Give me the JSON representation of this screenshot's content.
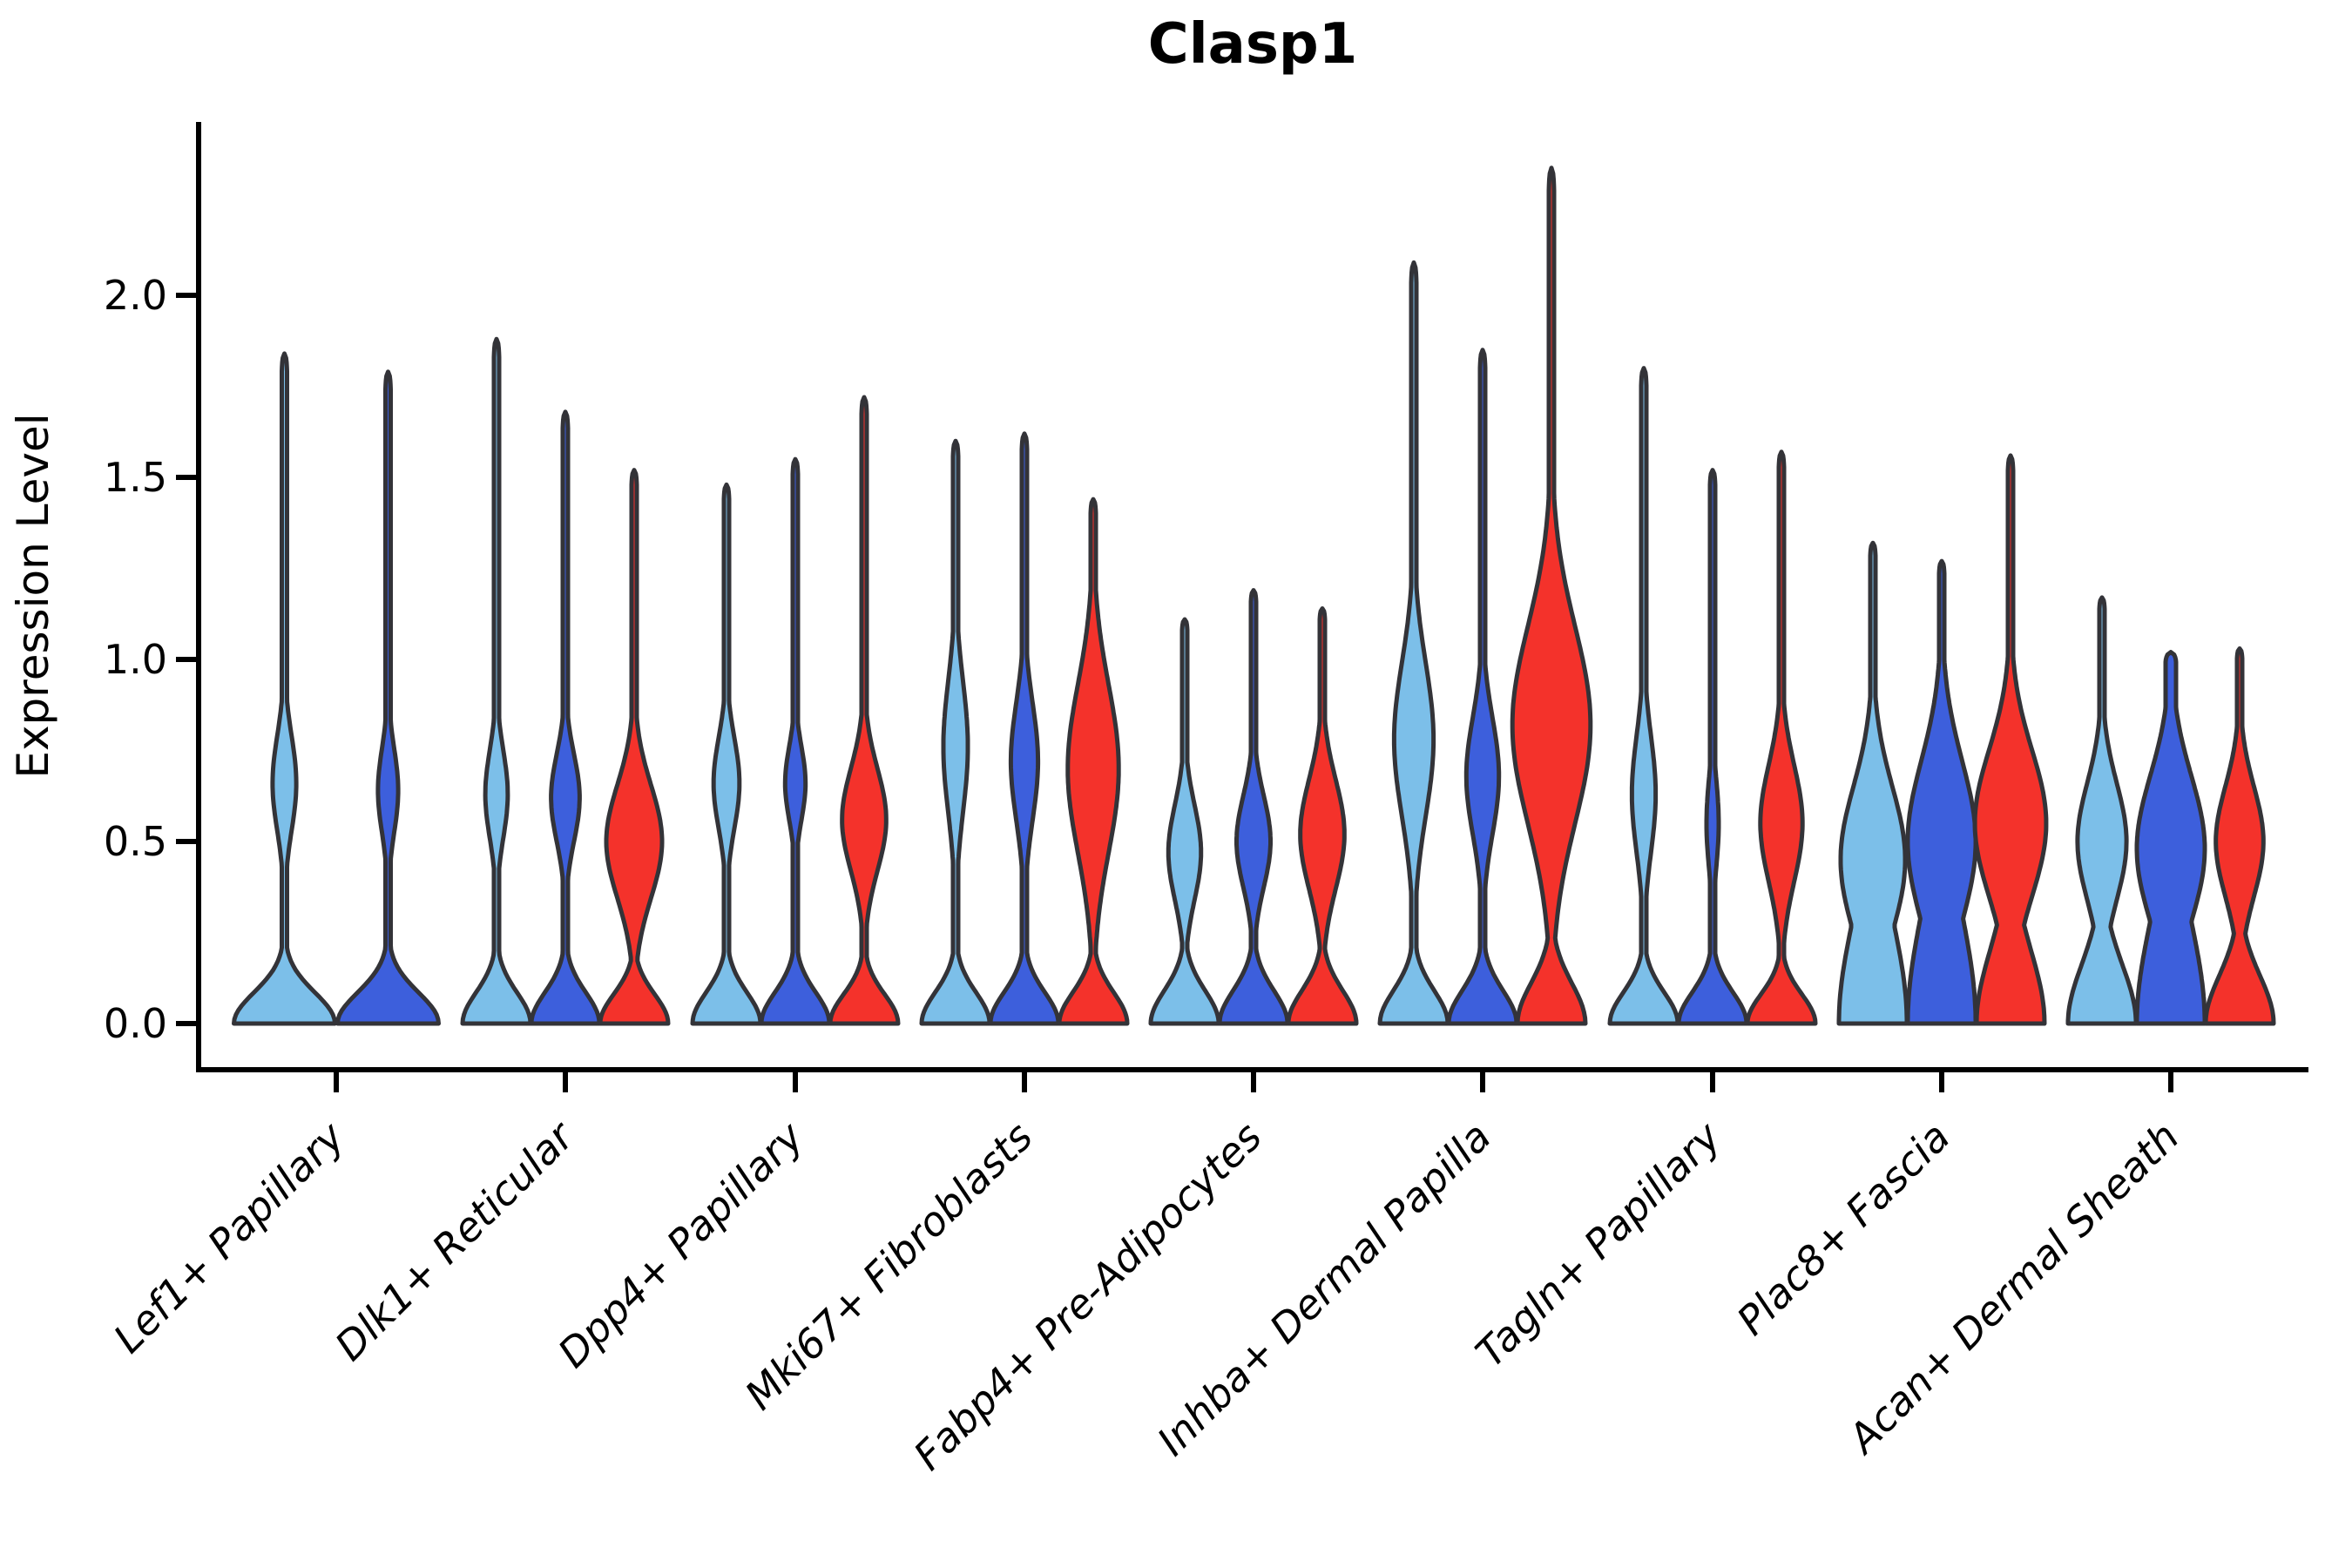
{
  "chart_data": {
    "type": "violin",
    "title": "Clasp1",
    "xlabel": "",
    "ylabel": "Expression Level",
    "yticks": [
      0.0,
      0.5,
      1.0,
      1.5,
      2.0
    ],
    "ytick_labels": [
      "0.0",
      "0.5",
      "1.0",
      "1.5",
      "2.0"
    ],
    "ylim": [
      -0.13,
      2.48
    ],
    "grid": "off",
    "legend": "none",
    "categories": [
      "Lef1+ Papillary",
      "Dlk1+ Reticular",
      "Dpp4+ Papillary",
      "Mki67+ Fibroblasts",
      "Fabp4+ Pre-Adipocytes",
      "Inhba+ Dermal Papilla",
      "Tagln+ Papillary",
      "Plac8+ Fascia",
      "Acan+ Dermal Sheath"
    ],
    "palette": {
      "light_blue": "#7CBFE9",
      "dark_blue": "#3D5FDC",
      "red": "#F4322B",
      "outline": "#333338"
    },
    "series": [
      {
        "name": "light_blue",
        "color": "#7CBFE9",
        "max_expression": [
          1.84,
          1.88,
          1.48,
          1.6,
          1.11,
          2.09,
          1.8,
          1.32,
          1.17
        ]
      },
      {
        "name": "dark_blue",
        "color": "#3D5FDC",
        "max_expression": [
          1.79,
          1.68,
          1.55,
          1.62,
          1.19,
          1.85,
          1.52,
          1.27,
          1.02
        ]
      },
      {
        "name": "red",
        "color": "#F4322B",
        "max_expression": [
          null,
          1.52,
          1.72,
          1.44,
          1.14,
          2.35,
          1.57,
          1.56,
          1.03
        ]
      }
    ],
    "violin_groups": [
      {
        "category": "Lef1+ Papillary",
        "center": 386,
        "violins": [
          {
            "series": "light_blue",
            "offset": -59.5,
            "halfwidth": 58,
            "max": 1.84,
            "base_sigma": 0.085,
            "bulge_center": 0.66,
            "bulge_sigma": 0.13,
            "bulge_amp": 0.235
          },
          {
            "series": "dark_blue",
            "offset": 59.5,
            "halfwidth": 58,
            "max": 1.79,
            "base_sigma": 0.085,
            "bulge_center": 0.64,
            "bulge_sigma": 0.115,
            "bulge_amp": 0.2
          }
        ]
      },
      {
        "category": "Dlk1+ Reticular",
        "center": 649,
        "violins": [
          {
            "series": "light_blue",
            "offset": -79,
            "halfwidth": 39,
            "max": 1.88,
            "base_sigma": 0.085,
            "bulge_center": 0.63,
            "bulge_sigma": 0.12,
            "bulge_amp": 0.33
          },
          {
            "series": "dark_blue",
            "offset": 0,
            "halfwidth": 39,
            "max": 1.68,
            "base_sigma": 0.085,
            "bulge_center": 0.62,
            "bulge_sigma": 0.12,
            "bulge_amp": 0.42
          },
          {
            "series": "red",
            "offset": 79,
            "halfwidth": 39,
            "max": 1.52,
            "base_sigma": 0.08,
            "bulge_center": 0.5,
            "bulge_sigma": 0.155,
            "bulge_amp": 0.82
          }
        ]
      },
      {
        "category": "Dpp4+ Papillary",
        "center": 913,
        "violins": [
          {
            "series": "light_blue",
            "offset": -79,
            "halfwidth": 39,
            "max": 1.48,
            "base_sigma": 0.085,
            "bulge_center": 0.66,
            "bulge_sigma": 0.125,
            "bulge_amp": 0.38
          },
          {
            "series": "dark_blue",
            "offset": 0,
            "halfwidth": 39,
            "max": 1.55,
            "base_sigma": 0.085,
            "bulge_center": 0.66,
            "bulge_sigma": 0.1,
            "bulge_amp": 0.3
          },
          {
            "series": "red",
            "offset": 79,
            "halfwidth": 39,
            "max": 1.72,
            "base_sigma": 0.08,
            "bulge_center": 0.56,
            "bulge_sigma": 0.14,
            "bulge_amp": 0.65
          }
        ]
      },
      {
        "category": "Mki67+ Fibroblasts",
        "center": 1176,
        "violins": [
          {
            "series": "light_blue",
            "offset": -79,
            "halfwidth": 39,
            "max": 1.6,
            "base_sigma": 0.085,
            "bulge_center": 0.76,
            "bulge_sigma": 0.18,
            "bulge_amp": 0.36
          },
          {
            "series": "dark_blue",
            "offset": 0,
            "halfwidth": 39,
            "max": 1.62,
            "base_sigma": 0.085,
            "bulge_center": 0.72,
            "bulge_sigma": 0.16,
            "bulge_amp": 0.4
          },
          {
            "series": "red",
            "offset": 79,
            "halfwidth": 39,
            "max": 1.44,
            "base_sigma": 0.085,
            "bulge_center": 0.7,
            "bulge_sigma": 0.23,
            "bulge_amp": 0.75
          }
        ]
      },
      {
        "category": "Fabp4+ Pre-Adipocytes",
        "center": 1439,
        "violins": [
          {
            "series": "light_blue",
            "offset": -79,
            "halfwidth": 39,
            "max": 1.11,
            "base_sigma": 0.09,
            "bulge_center": 0.47,
            "bulge_sigma": 0.13,
            "bulge_amp": 0.48
          },
          {
            "series": "dark_blue",
            "offset": 0,
            "halfwidth": 39,
            "max": 1.19,
            "base_sigma": 0.09,
            "bulge_center": 0.5,
            "bulge_sigma": 0.125,
            "bulge_amp": 0.5
          },
          {
            "series": "red",
            "offset": 79,
            "halfwidth": 39,
            "max": 1.14,
            "base_sigma": 0.09,
            "bulge_center": 0.52,
            "bulge_sigma": 0.15,
            "bulge_amp": 0.65
          }
        ]
      },
      {
        "category": "Inhba+ Dermal Papilla",
        "center": 1702,
        "violins": [
          {
            "series": "light_blue",
            "offset": -79,
            "halfwidth": 39,
            "max": 2.09,
            "base_sigma": 0.09,
            "bulge_center": 0.78,
            "bulge_sigma": 0.21,
            "bulge_amp": 0.58
          },
          {
            "series": "dark_blue",
            "offset": 0,
            "halfwidth": 39,
            "max": 1.85,
            "base_sigma": 0.09,
            "bulge_center": 0.68,
            "bulge_sigma": 0.16,
            "bulge_amp": 0.48
          },
          {
            "series": "red",
            "offset": 79,
            "halfwidth": 39,
            "max": 2.35,
            "base_sigma": 0.11,
            "bulge_center": 0.82,
            "bulge_sigma": 0.27,
            "bulge_amp": 1.15
          }
        ]
      },
      {
        "category": "Tagln+ Papillary",
        "center": 1966,
        "violins": [
          {
            "series": "light_blue",
            "offset": -79,
            "halfwidth": 39,
            "max": 1.8,
            "base_sigma": 0.085,
            "bulge_center": 0.63,
            "bulge_sigma": 0.16,
            "bulge_amp": 0.35
          },
          {
            "series": "dark_blue",
            "offset": 0,
            "halfwidth": 39,
            "max": 1.52,
            "base_sigma": 0.085,
            "bulge_center": 0.55,
            "bulge_sigma": 0.12,
            "bulge_amp": 0.18
          },
          {
            "series": "red",
            "offset": 79,
            "halfwidth": 39,
            "max": 1.57,
            "base_sigma": 0.08,
            "bulge_center": 0.55,
            "bulge_sigma": 0.16,
            "bulge_amp": 0.62
          }
        ]
      },
      {
        "category": "Plac8+ Fascia",
        "center": 2229,
        "violins": [
          {
            "series": "light_blue",
            "offset": -79,
            "halfwidth": 39,
            "max": 1.32,
            "base_sigma": 0.28,
            "bulge_center": 0.45,
            "bulge_sigma": 0.2,
            "bulge_amp": 0.95
          },
          {
            "series": "dark_blue",
            "offset": 0,
            "halfwidth": 39,
            "max": 1.27,
            "base_sigma": 0.3,
            "bulge_center": 0.5,
            "bulge_sigma": 0.22,
            "bulge_amp": 1.0
          },
          {
            "series": "red",
            "offset": 79,
            "halfwidth": 39,
            "max": 1.56,
            "base_sigma": 0.2,
            "bulge_center": 0.55,
            "bulge_sigma": 0.2,
            "bulge_amp": 1.05
          }
        ]
      },
      {
        "category": "Acan+ Dermal Sheath",
        "center": 2492,
        "violins": [
          {
            "series": "light_blue",
            "offset": -79,
            "halfwidth": 39,
            "max": 1.17,
            "base_sigma": 0.16,
            "bulge_center": 0.5,
            "bulge_sigma": 0.16,
            "bulge_amp": 0.72
          },
          {
            "series": "dark_blue",
            "offset": 0,
            "halfwidth": 39,
            "max": 1.02,
            "base_sigma": 0.28,
            "bulge_center": 0.48,
            "bulge_sigma": 0.2,
            "bulge_amp": 1.0,
            "tip": 6
          },
          {
            "series": "red",
            "offset": 79,
            "halfwidth": 39,
            "max": 1.03,
            "base_sigma": 0.13,
            "bulge_center": 0.5,
            "bulge_sigma": 0.15,
            "bulge_amp": 0.7
          }
        ]
      }
    ]
  }
}
